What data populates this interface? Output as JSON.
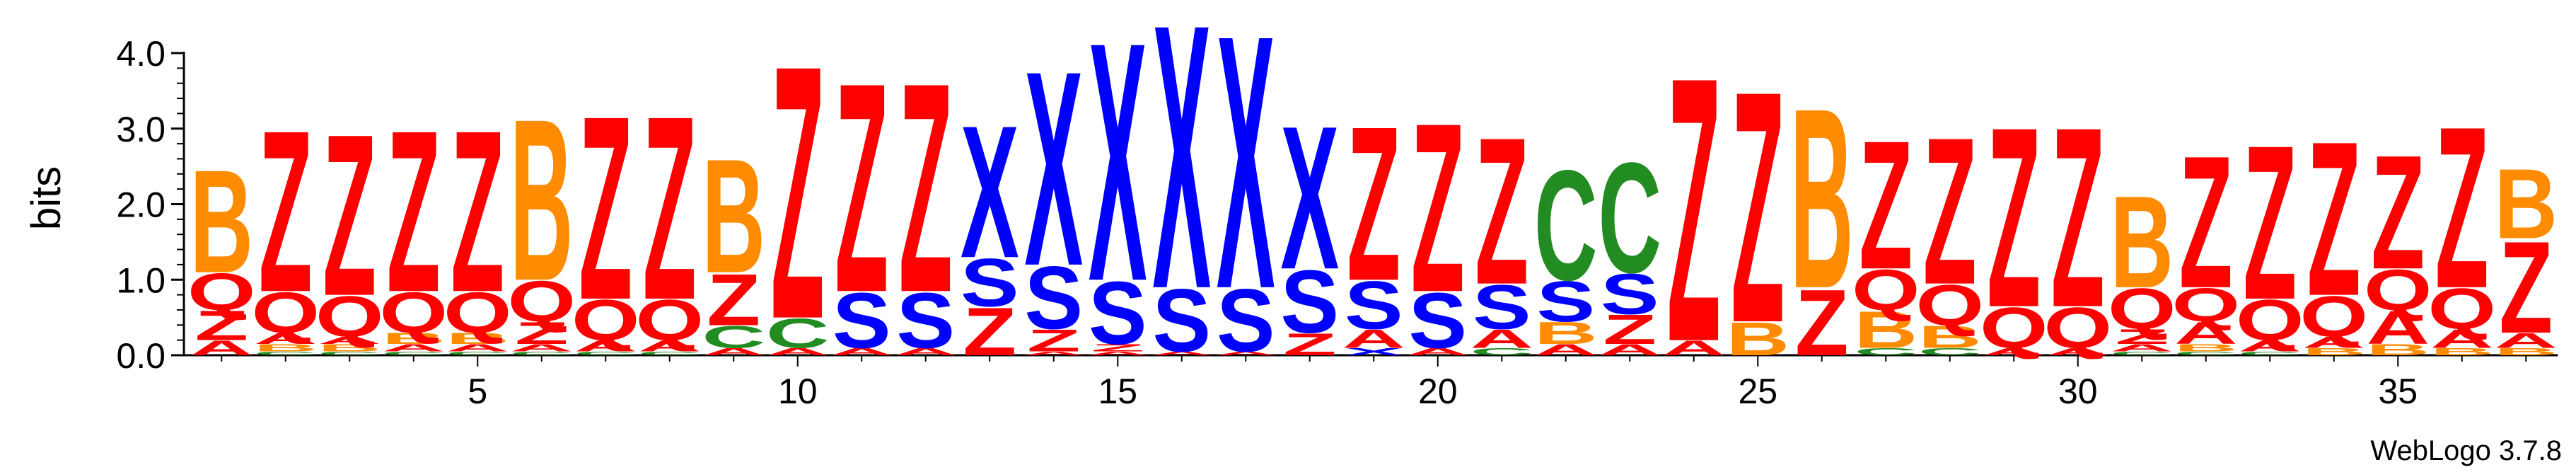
{
  "chart_data": {
    "type": "sequence-logo",
    "ylabel": "bits",
    "ylim": [
      0,
      4.0
    ],
    "y_ticks": [
      "0.0",
      "1.0",
      "2.0",
      "3.0",
      "4.0"
    ],
    "x_range": [
      1,
      37
    ],
    "x_ticks": [
      "5",
      "10",
      "15",
      "20",
      "25",
      "30",
      "35"
    ],
    "x_tick_positions": [
      5,
      10,
      15,
      20,
      25,
      30,
      35
    ],
    "footer": "WebLogo 3.7.8",
    "colors": {
      "Z": "#ff0000",
      "Q": "#ff0000",
      "A": "#ff0000",
      "B": "#ff8c00",
      "X": "#0000ff",
      "S": "#0000ff",
      "C": "#228b22",
      "G": "#228b22"
    },
    "columns": [
      {
        "pos": 1,
        "stack": [
          [
            "A",
            0.2
          ],
          [
            "Z",
            0.4
          ],
          [
            "Q",
            0.5
          ],
          [
            "B",
            1.4
          ]
        ]
      },
      {
        "pos": 2,
        "stack": [
          [
            "C",
            0.05
          ],
          [
            "B",
            0.1
          ],
          [
            "A",
            0.15
          ],
          [
            "Q",
            0.55
          ],
          [
            "Z",
            2.2
          ]
        ]
      },
      {
        "pos": 3,
        "stack": [
          [
            "C",
            0.05
          ],
          [
            "B",
            0.1
          ],
          [
            "A",
            0.1
          ],
          [
            "Q",
            0.55
          ],
          [
            "Z",
            2.2
          ]
        ]
      },
      {
        "pos": 4,
        "stack": [
          [
            "C",
            0.05
          ],
          [
            "A",
            0.1
          ],
          [
            "B",
            0.15
          ],
          [
            "Q",
            0.55
          ],
          [
            "Z",
            2.2
          ]
        ]
      },
      {
        "pos": 5,
        "stack": [
          [
            "C",
            0.05
          ],
          [
            "A",
            0.1
          ],
          [
            "B",
            0.15
          ],
          [
            "Q",
            0.55
          ],
          [
            "Z",
            2.2
          ]
        ]
      },
      {
        "pos": 6,
        "stack": [
          [
            "C",
            0.05
          ],
          [
            "A",
            0.1
          ],
          [
            "Z",
            0.3
          ],
          [
            "Q",
            0.55
          ],
          [
            "B",
            2.2
          ]
        ]
      },
      {
        "pos": 7,
        "stack": [
          [
            "C",
            0.05
          ],
          [
            "A",
            0.15
          ],
          [
            "Q",
            0.55
          ],
          [
            "Z",
            2.5
          ]
        ]
      },
      {
        "pos": 8,
        "stack": [
          [
            "C",
            0.05
          ],
          [
            "A",
            0.15
          ],
          [
            "Q",
            0.55
          ],
          [
            "Z",
            2.5
          ]
        ]
      },
      {
        "pos": 9,
        "stack": [
          [
            "A",
            0.1
          ],
          [
            "C",
            0.3
          ],
          [
            "Z",
            0.7
          ],
          [
            "B",
            1.55
          ]
        ]
      },
      {
        "pos": 10,
        "stack": [
          [
            "A",
            0.1
          ],
          [
            "C",
            0.4
          ],
          [
            "Z",
            3.45
          ]
        ]
      },
      {
        "pos": 11,
        "stack": [
          [
            "A",
            0.1
          ],
          [
            "S",
            0.75
          ],
          [
            "Z",
            2.85
          ]
        ]
      },
      {
        "pos": 12,
        "stack": [
          [
            "A",
            0.1
          ],
          [
            "S",
            0.75
          ],
          [
            "Z",
            2.85
          ]
        ]
      },
      {
        "pos": 13,
        "stack": [
          [
            "Z",
            0.65
          ],
          [
            "S",
            0.65
          ],
          [
            "X",
            1.8
          ]
        ]
      },
      {
        "pos": 14,
        "stack": [
          [
            "A",
            0.05
          ],
          [
            "Z",
            0.3
          ],
          [
            "S",
            0.85
          ],
          [
            "X",
            2.65
          ]
        ]
      },
      {
        "pos": 15,
        "stack": [
          [
            "A",
            0.05
          ],
          [
            "Z",
            0.1
          ],
          [
            "S",
            0.85
          ],
          [
            "X",
            3.25
          ]
        ]
      },
      {
        "pos": 16,
        "stack": [
          [
            "A",
            0.05
          ],
          [
            "S",
            0.85
          ],
          [
            "X",
            3.6
          ]
        ]
      },
      {
        "pos": 17,
        "stack": [
          [
            "A",
            0.05
          ],
          [
            "S",
            0.85
          ],
          [
            "X",
            3.45
          ]
        ]
      },
      {
        "pos": 18,
        "stack": [
          [
            "Z",
            0.3
          ],
          [
            "S",
            0.85
          ],
          [
            "X",
            1.95
          ]
        ]
      },
      {
        "pos": 19,
        "stack": [
          [
            "X",
            0.1
          ],
          [
            "A",
            0.25
          ],
          [
            "S",
            0.65
          ],
          [
            "Z",
            2.1
          ]
        ]
      },
      {
        "pos": 20,
        "stack": [
          [
            "A",
            0.1
          ],
          [
            "S",
            0.75
          ],
          [
            "Z",
            2.3
          ]
        ]
      },
      {
        "pos": 21,
        "stack": [
          [
            "C",
            0.1
          ],
          [
            "A",
            0.25
          ],
          [
            "S",
            0.6
          ],
          [
            "Z",
            2.0
          ]
        ]
      },
      {
        "pos": 22,
        "stack": [
          [
            "A",
            0.15
          ],
          [
            "B",
            0.3
          ],
          [
            "S",
            0.55
          ],
          [
            "C",
            1.5
          ]
        ]
      },
      {
        "pos": 23,
        "stack": [
          [
            "A",
            0.15
          ],
          [
            "Z",
            0.4
          ],
          [
            "S",
            0.55
          ],
          [
            "C",
            1.5
          ]
        ]
      },
      {
        "pos": 24,
        "stack": [
          [
            "A",
            0.2
          ],
          [
            "Z",
            3.6
          ]
        ]
      },
      {
        "pos": 25,
        "stack": [
          [
            "B",
            0.45
          ],
          [
            "Z",
            3.15
          ]
        ]
      },
      {
        "pos": 26,
        "stack": [
          [
            "Z",
            0.9
          ],
          [
            "B",
            2.45
          ]
        ]
      },
      {
        "pos": 27,
        "stack": [
          [
            "C",
            0.1
          ],
          [
            "B",
            0.5
          ],
          [
            "Q",
            0.55
          ],
          [
            "Z",
            1.75
          ]
        ]
      },
      {
        "pos": 28,
        "stack": [
          [
            "C",
            0.1
          ],
          [
            "B",
            0.3
          ],
          [
            "Q",
            0.55
          ],
          [
            "Z",
            2.0
          ]
        ]
      },
      {
        "pos": 29,
        "stack": [
          [
            "A",
            0.1
          ],
          [
            "Q",
            0.55
          ],
          [
            "Z",
            2.45
          ]
        ]
      },
      {
        "pos": 30,
        "stack": [
          [
            "A",
            0.1
          ],
          [
            "Q",
            0.55
          ],
          [
            "Z",
            2.45
          ]
        ]
      },
      {
        "pos": 31,
        "stack": [
          [
            "C",
            0.05
          ],
          [
            "A",
            0.1
          ],
          [
            "Z",
            0.2
          ],
          [
            "Q",
            0.55
          ],
          [
            "B",
            1.25
          ]
        ]
      },
      {
        "pos": 32,
        "stack": [
          [
            "C",
            0.05
          ],
          [
            "B",
            0.1
          ],
          [
            "A",
            0.3
          ],
          [
            "Q",
            0.45
          ],
          [
            "Z",
            1.8
          ]
        ]
      },
      {
        "pos": 33,
        "stack": [
          [
            "C",
            0.05
          ],
          [
            "A",
            0.15
          ],
          [
            "Q",
            0.55
          ],
          [
            "Z",
            2.1
          ]
        ]
      },
      {
        "pos": 34,
        "stack": [
          [
            "B",
            0.1
          ],
          [
            "A",
            0.15
          ],
          [
            "Q",
            0.55
          ],
          [
            "Z",
            2.1
          ]
        ]
      },
      {
        "pos": 35,
        "stack": [
          [
            "B",
            0.15
          ],
          [
            "A",
            0.45
          ],
          [
            "Q",
            0.55
          ],
          [
            "Z",
            1.55
          ]
        ]
      },
      {
        "pos": 36,
        "stack": [
          [
            "B",
            0.1
          ],
          [
            "A",
            0.25
          ],
          [
            "Q",
            0.55
          ],
          [
            "Z",
            2.2
          ]
        ]
      },
      {
        "pos": 37,
        "stack": [
          [
            "B",
            0.1
          ],
          [
            "A",
            0.2
          ],
          [
            "Z",
            1.25
          ],
          [
            "B",
            0.95
          ]
        ]
      }
    ]
  }
}
